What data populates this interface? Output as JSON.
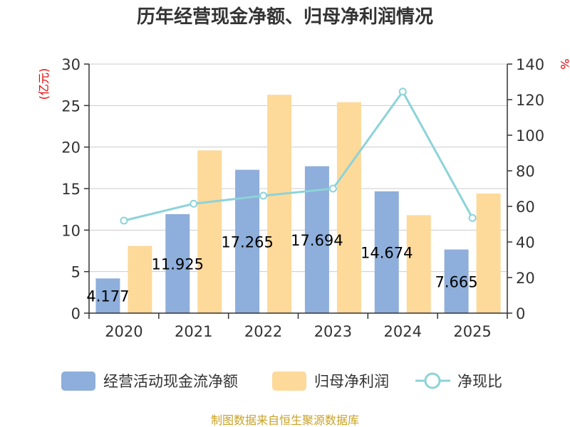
{
  "chart_data": {
    "type": "bar",
    "title": "历年经营现金净额、归母净利润情况",
    "categories": [
      "2020",
      "2021",
      "2022",
      "2023",
      "2024",
      "2025"
    ],
    "y_left_unit": "(亿元)",
    "y_right_unit": "%",
    "ylim_left": [
      0,
      30
    ],
    "ylim_right": [
      0,
      140
    ],
    "yticks_left": [
      "0",
      "5",
      "10",
      "15",
      "20",
      "25",
      "30"
    ],
    "yticks_right": [
      "0",
      "20",
      "40",
      "60",
      "80",
      "100",
      "120",
      "140"
    ],
    "series": [
      {
        "name": "经营活动现金流净额",
        "type": "bar",
        "axis": "left",
        "color": "#8eaedb",
        "values": [
          4.177,
          11.925,
          17.265,
          17.694,
          14.674,
          7.665
        ]
      },
      {
        "name": "归母净利润",
        "type": "bar",
        "axis": "left",
        "color": "#fdd99a",
        "values": [
          8.1,
          19.6,
          26.3,
          25.4,
          11.8,
          14.4
        ]
      },
      {
        "name": "净现比",
        "type": "line",
        "axis": "right",
        "color": "#8dd3d8",
        "values": [
          52,
          61.5,
          66,
          70,
          124.5,
          53.5
        ]
      }
    ],
    "bar_labels": [
      "4.177",
      "11.925",
      "17.265",
      "17.694",
      "14.674",
      "7.665"
    ],
    "source": "制图数据来自恒生聚源数据库"
  }
}
